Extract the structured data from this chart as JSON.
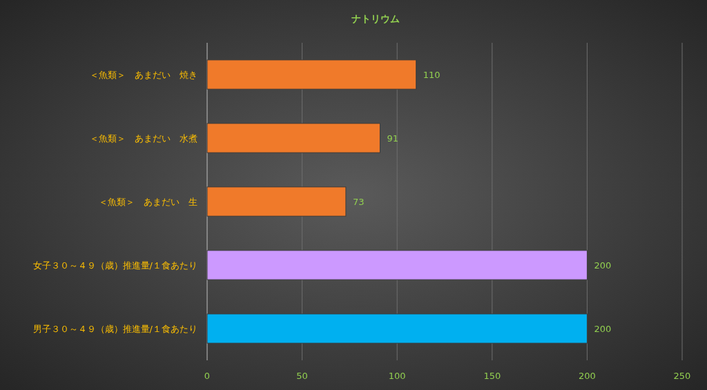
{
  "chart_data": {
    "type": "bar",
    "orientation": "horizontal",
    "title": "ナトリウム",
    "categories": [
      "＜魚類＞　あまだい　焼き",
      "＜魚類＞　あまだい　水煮",
      "＜魚類＞　あまだい　生",
      "女子３０～４９（歳）推進量/１食あたり",
      "男子３０～４９（歳）推進量/１食あたり"
    ],
    "values": [
      110,
      91,
      73,
      200,
      200
    ],
    "colors": [
      "#f07a2a",
      "#f07a2a",
      "#f07a2a",
      "#cc99ff",
      "#00b0f0"
    ],
    "xlim": [
      0,
      250
    ],
    "xticks": [
      0,
      50,
      100,
      150,
      200,
      250
    ],
    "grid": "x",
    "data_labels": true
  }
}
